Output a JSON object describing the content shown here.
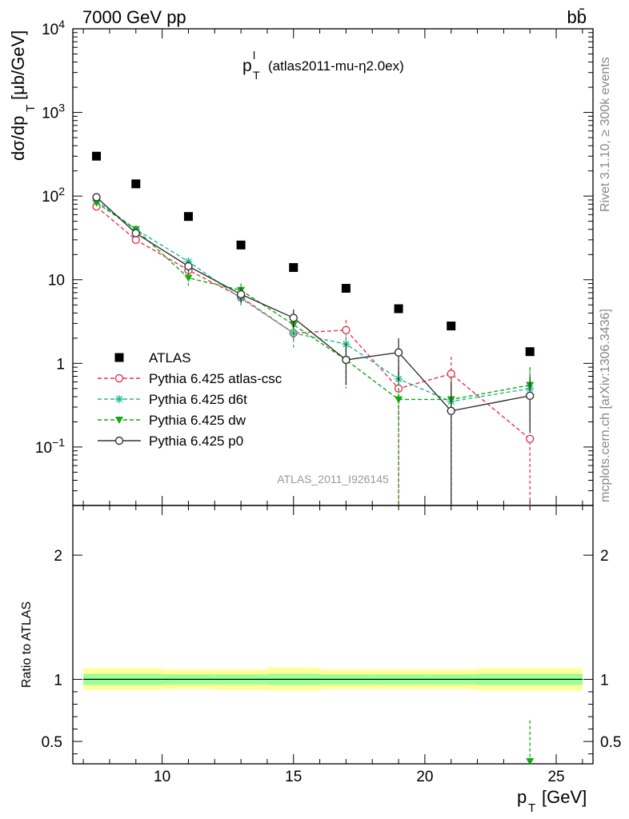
{
  "header": {
    "left": "7000 GeV pp",
    "right": "bb̄"
  },
  "plot_title": {
    "main": "p",
    "sup": "l",
    "sub": "T",
    "detail": "(atlas2011-mu-η2.0ex)"
  },
  "watermark": "ATLAS_2011_I926145",
  "side_labels": {
    "rivet": "Rivet 3.1.10, ≥ 300k events",
    "mcplots": "mcplots.cern.ch [arXiv:1306.3436]"
  },
  "axis_labels": {
    "y_main_prefix": "dσ/dp",
    "y_main_sub": "T",
    "y_main_suffix": "[μb/GeV]",
    "y_ratio": "Ratio to ATLAS",
    "x_main": "p",
    "x_sub": "T",
    "x_suffix": "[GeV]"
  },
  "colors": {
    "atlas": "#000000",
    "atlas_csc": "#ee3355",
    "d6t": "#22bb99",
    "dw": "#11aa11",
    "p0": "#333333",
    "band_inner": "#99ff99",
    "band_outer": "#ffff99"
  },
  "chart_data": [
    {
      "type": "scatter",
      "scale": "log-y",
      "xlim": [
        6.6,
        26.4
      ],
      "ylim": [
        0.02,
        10000
      ],
      "y_tick_labels": [
        "10^-1",
        "1",
        "10",
        "10^2",
        "10^3",
        "10^4"
      ],
      "legend_placement": "left-middle",
      "series": [
        {
          "name": "ATLAS",
          "key": "atlas",
          "style": "square",
          "x": [
            7.5,
            9,
            11,
            13,
            15,
            17,
            19,
            21,
            24
          ],
          "y": [
            300,
            140,
            57,
            26,
            14,
            7.9,
            4.5,
            2.8,
            1.38
          ],
          "x_err": [
            0.5,
            1,
            1,
            1,
            1,
            1,
            1,
            1,
            2
          ]
        },
        {
          "name": "Pythia 6.425 atlas-csc",
          "key": "atlas_csc",
          "style": "open-circle-dashed",
          "x": [
            7.5,
            9,
            11,
            13,
            15,
            17,
            19,
            21,
            24
          ],
          "y": [
            75,
            30,
            13,
            6.2,
            2.3,
            2.5,
            0.5,
            0.75,
            0.125
          ],
          "y_lo": [
            70,
            28,
            11.5,
            5,
            1.8,
            1.8,
            0.005,
            0.3,
            0.005
          ],
          "y_hi": [
            80,
            33,
            14.5,
            7.5,
            2.8,
            3.3,
            0.9,
            1.2,
            0.4
          ]
        },
        {
          "name": "Pythia 6.425 d6t",
          "key": "d6t",
          "style": "star-dashed",
          "x": [
            7.5,
            9,
            11,
            13,
            15,
            17,
            19,
            21,
            24
          ],
          "y": [
            88,
            40,
            16.5,
            6,
            2.3,
            1.7,
            0.65,
            0.35,
            0.5
          ],
          "y_lo": [
            82,
            37,
            14.5,
            4.9,
            1.5,
            1.1,
            0.2,
            0.005,
            0.15
          ],
          "y_hi": [
            94,
            43,
            18.5,
            7.3,
            3.1,
            2.3,
            1.1,
            0.7,
            0.85
          ]
        },
        {
          "name": "Pythia 6.425 dw",
          "key": "dw",
          "style": "triangle-dashed",
          "x": [
            7.5,
            9,
            11,
            13,
            15,
            17,
            19,
            21,
            24
          ],
          "y": [
            83,
            40,
            10.5,
            7.5,
            2.9,
            1.1,
            0.37,
            0.37,
            0.55
          ],
          "y_lo": [
            78,
            37,
            8.5,
            6,
            2,
            0.5,
            0.005,
            0.005,
            0.2
          ],
          "y_hi": [
            88,
            43,
            12.5,
            9,
            3.8,
            1.8,
            0.8,
            0.7,
            0.9
          ]
        },
        {
          "name": "Pythia 6.425 p0",
          "key": "p0",
          "style": "open-circle-solid",
          "x": [
            7.5,
            9,
            11,
            13,
            15,
            17,
            19,
            21,
            24
          ],
          "y": [
            97,
            36,
            14.5,
            6.7,
            3.5,
            1.1,
            1.35,
            0.27,
            0.41
          ],
          "y_lo": [
            91,
            33,
            12.5,
            5.3,
            2.6,
            0.55,
            0.6,
            0.005,
            0.15
          ],
          "y_hi": [
            103,
            39,
            16.5,
            8.1,
            4.4,
            1.7,
            2.0,
            0.6,
            0.7
          ]
        }
      ]
    },
    {
      "type": "area",
      "xlim": [
        6.6,
        26.4
      ],
      "ylim": [
        0.32,
        2.4
      ],
      "y_ticks": [
        0.5,
        1,
        2
      ],
      "x_ticks": [
        10,
        15,
        20,
        25
      ],
      "reference_line": 1,
      "bands": [
        {
          "x_lo": 7,
          "x_hi": 8,
          "inner": [
            0.955,
            1.045
          ],
          "outer": [
            0.915,
            1.09
          ]
        },
        {
          "x_lo": 8,
          "x_hi": 10,
          "inner": [
            0.955,
            1.045
          ],
          "outer": [
            0.915,
            1.09
          ]
        },
        {
          "x_lo": 10,
          "x_hi": 12,
          "inner": [
            0.96,
            1.04
          ],
          "outer": [
            0.92,
            1.08
          ]
        },
        {
          "x_lo": 12,
          "x_hi": 14,
          "inner": [
            0.96,
            1.04
          ],
          "outer": [
            0.915,
            1.08
          ]
        },
        {
          "x_lo": 14,
          "x_hi": 16,
          "inner": [
            0.955,
            1.045
          ],
          "outer": [
            0.91,
            1.095
          ]
        },
        {
          "x_lo": 16,
          "x_hi": 18,
          "inner": [
            0.96,
            1.04
          ],
          "outer": [
            0.92,
            1.08
          ]
        },
        {
          "x_lo": 18,
          "x_hi": 20,
          "inner": [
            0.96,
            1.04
          ],
          "outer": [
            0.92,
            1.08
          ]
        },
        {
          "x_lo": 20,
          "x_hi": 22,
          "inner": [
            0.96,
            1.04
          ],
          "outer": [
            0.92,
            1.08
          ]
        },
        {
          "x_lo": 22,
          "x_hi": 26,
          "inner": [
            0.955,
            1.045
          ],
          "outer": [
            0.91,
            1.09
          ]
        }
      ],
      "markers": [
        {
          "series": "dw",
          "x": 24,
          "y": 0.34,
          "y_lo": 0.34,
          "y_hi": 0.67
        }
      ]
    }
  ]
}
